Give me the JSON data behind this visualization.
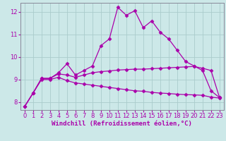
{
  "xlabel": "Windchill (Refroidissement éolien,°C)",
  "background_color": "#cce8e8",
  "line_color": "#aa00aa",
  "grid_color": "#aacccc",
  "hours": [
    0,
    1,
    2,
    3,
    4,
    5,
    6,
    7,
    8,
    9,
    10,
    11,
    12,
    13,
    14,
    15,
    16,
    17,
    18,
    19,
    20,
    21,
    22,
    23
  ],
  "line1": [
    7.8,
    8.4,
    9.05,
    9.05,
    9.3,
    9.7,
    9.2,
    9.4,
    9.6,
    10.5,
    10.8,
    12.2,
    11.85,
    12.05,
    11.3,
    11.6,
    11.1,
    10.8,
    10.3,
    9.8,
    9.6,
    9.4,
    8.5,
    8.2
  ],
  "line2": [
    7.8,
    8.4,
    9.05,
    9.05,
    9.25,
    9.2,
    9.1,
    9.2,
    9.3,
    9.35,
    9.38,
    9.42,
    9.44,
    9.46,
    9.46,
    9.48,
    9.5,
    9.52,
    9.54,
    9.56,
    9.58,
    9.5,
    9.4,
    8.2
  ],
  "line3": [
    7.8,
    8.4,
    9.0,
    9.0,
    9.1,
    8.95,
    8.85,
    8.8,
    8.75,
    8.7,
    8.65,
    8.6,
    8.55,
    8.5,
    8.48,
    8.43,
    8.4,
    8.38,
    8.35,
    8.33,
    8.32,
    8.3,
    8.22,
    8.18
  ],
  "ylim": [
    7.65,
    12.4
  ],
  "yticks": [
    8,
    9,
    10,
    11,
    12
  ],
  "xticks": [
    0,
    1,
    2,
    3,
    4,
    5,
    6,
    7,
    8,
    9,
    10,
    11,
    12,
    13,
    14,
    15,
    16,
    17,
    18,
    19,
    20,
    21,
    22,
    23
  ],
  "marker": "D",
  "markersize": 2.5,
  "linewidth": 0.9,
  "xlabel_fontsize": 6.5,
  "tick_fontsize": 6.0
}
